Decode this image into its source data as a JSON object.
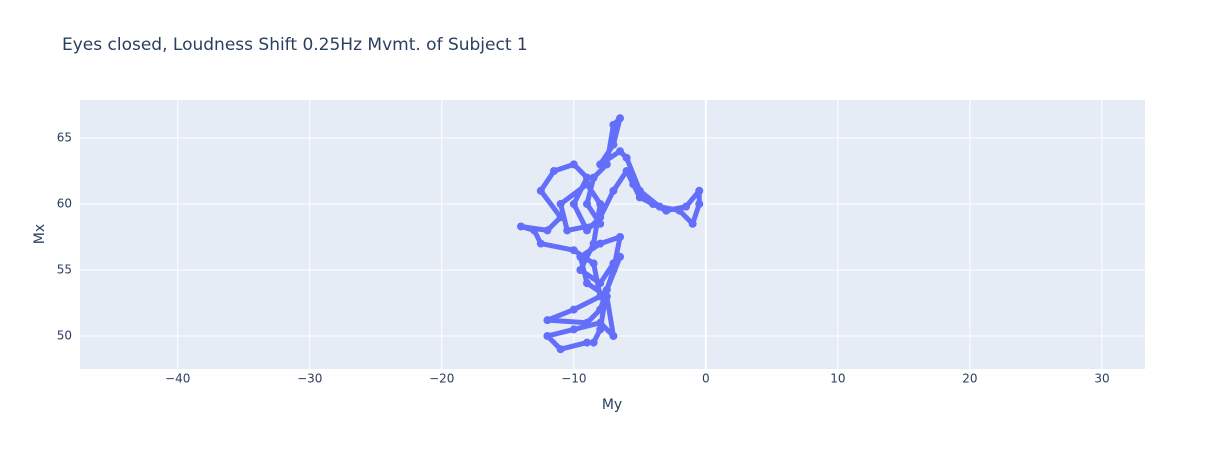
{
  "chart_data": {
    "type": "scatter",
    "title": "Eyes closed, Loudness Shift 0.25Hz Mvmt. of Subject 1",
    "x_label": "My",
    "y_label": "Mx",
    "color": "#636efa",
    "grid": true,
    "x": [
      -9,
      -11,
      -12,
      -10,
      -8,
      -7,
      -7.5,
      -9,
      -9.5,
      -8,
      -6.5,
      -7,
      -8,
      -9,
      -12,
      -10,
      -8,
      -8.5,
      -10,
      -12.5,
      -13,
      -14,
      -12,
      -11,
      -12.5,
      -11.5,
      -10,
      -9,
      -10,
      -9,
      -8,
      -7,
      -6,
      -5.5,
      -5,
      -4,
      -3,
      -1.5,
      -0.5,
      -0.5,
      -1,
      -2,
      -3.5,
      -5,
      -6,
      -6.5,
      -8,
      -7,
      -6.5,
      -7,
      -7.5,
      -8.5,
      -9,
      -8,
      -10.5,
      -11,
      -9,
      -8,
      -8.5,
      -9.5,
      -8,
      -7,
      -6.5,
      -7.5,
      -8,
      -8.5
    ],
    "values": [
      49.5,
      49,
      50,
      50.5,
      51,
      50,
      53,
      54,
      56,
      57,
      57.5,
      55,
      52,
      51,
      51.2,
      52,
      53,
      55.5,
      56.5,
      57,
      58,
      58.3,
      58,
      59,
      61,
      62.5,
      63,
      62,
      60,
      58,
      59,
      61,
      62.5,
      61.5,
      60.5,
      60,
      59.5,
      59.8,
      61,
      60,
      58.5,
      59.5,
      59.8,
      61,
      63.5,
      64,
      63,
      64.5,
      66.5,
      66,
      63,
      62,
      60,
      58.5,
      58,
      60,
      61.5,
      60,
      57,
      55,
      54,
      55.5,
      56,
      53.5,
      50.5,
      49.5
    ],
    "xlim": [
      -47.4,
      33.26
    ],
    "ylim": [
      47.5,
      67.88
    ],
    "xticks": [
      {
        "value": -40,
        "label": "−40"
      },
      {
        "value": -30,
        "label": "−30"
      },
      {
        "value": -20,
        "label": "−20"
      },
      {
        "value": -10,
        "label": "−10"
      },
      0,
      10,
      20,
      30
    ],
    "yticks": [
      50,
      55,
      60,
      65
    ]
  }
}
